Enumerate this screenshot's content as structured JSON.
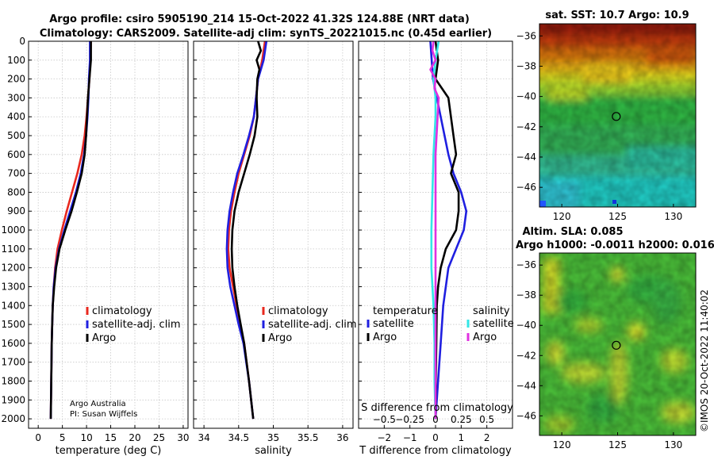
{
  "header": {
    "title_line1": "Argo profile: csiro 5905190_214 15-Oct-2022 41.32S 124.88E (NRT data)",
    "title_line2": "Climatology: CARS2009. Satellite-adj clim: synTS_20221015.nc (0.45d earlier)"
  },
  "credit": {
    "org": "Argo Australia",
    "pi": "PI: Susan Wijffels"
  },
  "timestamp": "©IMOS 20-Oct-2022 11:40:02",
  "colors": {
    "climatology": "#e8281e",
    "satellite_clim": "#1f1fe0",
    "argo": "#000000",
    "sal_satellite": "#33e6e6",
    "sal_argo": "#e030e0"
  },
  "chart_data": [
    {
      "type": "line",
      "id": "temperature",
      "title": "",
      "xlabel": "temperature (deg C)",
      "ylabel": "",
      "xlim": [
        -2,
        31
      ],
      "ylim": [
        2050,
        0
      ],
      "xticks": [
        0,
        5,
        10,
        15,
        20,
        25,
        30
      ],
      "yticks": [
        0,
        100,
        200,
        300,
        400,
        500,
        600,
        700,
        800,
        900,
        1000,
        1100,
        1200,
        1300,
        1400,
        1500,
        1600,
        1700,
        1800,
        1900,
        2000
      ],
      "grid": true,
      "legend": [
        "climatology",
        "satellite-adj. clim",
        "Argo"
      ],
      "series": [
        {
          "name": "climatology",
          "color": "#e8281e",
          "depth": [
            0,
            100,
            200,
            300,
            400,
            500,
            600,
            700,
            800,
            900,
            1000,
            1100,
            1200,
            1300,
            1400,
            1500,
            1600,
            1800,
            2000
          ],
          "values": [
            10.9,
            10.8,
            10.6,
            10.3,
            10.0,
            9.6,
            9.0,
            8.1,
            7.0,
            5.9,
            4.9,
            4.0,
            3.5,
            3.2,
            3.0,
            2.9,
            2.8,
            2.7,
            2.6
          ]
        },
        {
          "name": "satellite-adj. clim",
          "color": "#1f1fe0",
          "depth": [
            0,
            100,
            200,
            300,
            400,
            500,
            600,
            700,
            800,
            900,
            1000,
            1100,
            1200,
            1300,
            1400,
            1500,
            1600,
            1800,
            2000
          ],
          "values": [
            10.7,
            10.7,
            10.5,
            10.4,
            10.2,
            9.9,
            9.5,
            8.8,
            7.8,
            6.6,
            5.4,
            4.3,
            3.6,
            3.2,
            3.0,
            2.9,
            2.8,
            2.7,
            2.6
          ]
        },
        {
          "name": "Argo",
          "color": "#000000",
          "depth": [
            0,
            100,
            200,
            300,
            400,
            500,
            600,
            700,
            800,
            900,
            1000,
            1100,
            1200,
            1300,
            1400,
            1500,
            1600,
            1800,
            2000
          ],
          "values": [
            10.9,
            10.9,
            10.6,
            10.3,
            10.1,
            9.9,
            9.6,
            9.0,
            8.0,
            6.9,
            5.6,
            4.4,
            3.7,
            3.3,
            3.0,
            2.9,
            2.8,
            2.7,
            2.6
          ]
        }
      ]
    },
    {
      "type": "line",
      "id": "salinity",
      "title": "",
      "xlabel": "salinity",
      "ylabel": "",
      "xlim": [
        33.85,
        36.15
      ],
      "ylim": [
        2050,
        0
      ],
      "xticks": [
        34,
        34.5,
        35,
        35.5,
        36
      ],
      "yticks": [
        0,
        100,
        200,
        300,
        400,
        500,
        600,
        700,
        800,
        900,
        1000,
        1100,
        1200,
        1300,
        1400,
        1500,
        1600,
        1700,
        1800,
        1900,
        2000
      ],
      "grid": true,
      "legend": [
        "climatology",
        "satellite-adj. clim",
        "Argo"
      ],
      "series": [
        {
          "name": "climatology",
          "color": "#e8281e",
          "depth": [
            0,
            100,
            200,
            300,
            400,
            500,
            600,
            700,
            800,
            900,
            1000,
            1100,
            1200,
            1300,
            1400,
            1500,
            1600,
            1800,
            2000
          ],
          "values": [
            34.88,
            34.84,
            34.78,
            34.75,
            34.72,
            34.66,
            34.58,
            34.5,
            34.44,
            34.39,
            34.36,
            34.35,
            34.37,
            34.42,
            34.47,
            34.52,
            34.58,
            34.65,
            34.71
          ]
        },
        {
          "name": "satellite-adj. clim",
          "color": "#1f1fe0",
          "depth": [
            0,
            100,
            200,
            300,
            400,
            500,
            600,
            700,
            800,
            900,
            1000,
            1100,
            1200,
            1300,
            1400,
            1500,
            1600,
            1800,
            2000
          ],
          "values": [
            34.9,
            34.86,
            34.78,
            34.75,
            34.72,
            34.65,
            34.57,
            34.48,
            34.42,
            34.37,
            34.34,
            34.33,
            34.34,
            34.38,
            34.44,
            34.5,
            34.57,
            34.65,
            34.71
          ]
        },
        {
          "name": "Argo",
          "color": "#000000",
          "depth": [
            0,
            50,
            100,
            150,
            200,
            300,
            400,
            500,
            600,
            700,
            800,
            900,
            1000,
            1100,
            1200,
            1300,
            1400,
            1500,
            1600,
            1800,
            2000
          ],
          "values": [
            34.78,
            34.82,
            34.76,
            34.8,
            34.77,
            34.76,
            34.77,
            34.73,
            34.66,
            34.58,
            34.5,
            34.44,
            34.41,
            34.4,
            34.41,
            34.44,
            34.48,
            34.53,
            34.58,
            34.65,
            34.71
          ]
        }
      ]
    },
    {
      "type": "line",
      "id": "difference",
      "title": "",
      "xlabel": "T difference from climatology",
      "xlabel_top": "S difference from climatology",
      "ylabel": "",
      "xlim": [
        -3,
        3
      ],
      "ylim": [
        2050,
        0
      ],
      "xticks": [
        -2,
        -1,
        0,
        1,
        2
      ],
      "xticks_top": [
        -0.5,
        -0.25,
        0,
        0.25,
        0.5
      ],
      "yticks": [
        0,
        100,
        200,
        300,
        400,
        500,
        600,
        700,
        800,
        900,
        1000,
        1100,
        1200,
        1300,
        1400,
        1500,
        1600,
        1700,
        1800,
        1900,
        2000
      ],
      "grid": true,
      "legend": [
        "temperature",
        "salinity",
        "satellite",
        "Argo"
      ],
      "series": [
        {
          "name": "temperature satellite",
          "color": "#1f1fe0",
          "depth": [
            0,
            200,
            400,
            600,
            700,
            800,
            900,
            1000,
            1100,
            1200,
            1400,
            1600,
            1800,
            2000
          ],
          "values": [
            -0.2,
            -0.1,
            0.2,
            0.5,
            0.7,
            1.0,
            1.2,
            1.1,
            0.8,
            0.5,
            0.3,
            0.2,
            0.1,
            0.0
          ]
        },
        {
          "name": "temperature Argo",
          "color": "#000000",
          "depth": [
            0,
            100,
            200,
            300,
            400,
            500,
            600,
            700,
            800,
            900,
            1000,
            1100,
            1200,
            1300,
            1400,
            1600,
            1800,
            2000
          ],
          "values": [
            0.0,
            0.1,
            0.0,
            0.5,
            0.6,
            0.7,
            0.8,
            0.6,
            0.9,
            0.9,
            0.8,
            0.4,
            0.2,
            0.1,
            0.05,
            0.03,
            0.01,
            0.0
          ]
        },
        {
          "name": "salinity satellite",
          "color": "#33e6e6",
          "depth": [
            0,
            100,
            200,
            300,
            400,
            600,
            800,
            1000,
            1200,
            1300,
            1400,
            1600,
            1800,
            2000
          ],
          "values": [
            0.03,
            0.0,
            -0.02,
            0.0,
            0.0,
            -0.02,
            -0.03,
            -0.04,
            -0.04,
            -0.03,
            -0.02,
            -0.01,
            -0.01,
            0.0
          ]
        },
        {
          "name": "salinity Argo",
          "color": "#e030e0",
          "depth": [
            0,
            50,
            100,
            150,
            200,
            250,
            300,
            400,
            600,
            800,
            1000,
            1200,
            1400,
            1600,
            1800,
            2000
          ],
          "values": [
            -0.02,
            -0.03,
            0.0,
            -0.05,
            0.0,
            -0.01,
            0.03,
            0.02,
            0.0,
            0.0,
            0.0,
            0.0,
            0.0,
            0.0,
            0.0,
            0.0
          ]
        }
      ]
    },
    {
      "type": "heatmap",
      "id": "sst_map",
      "title": "sat. SST: 10.7 Argo: 10.9",
      "xticks": [
        120,
        125,
        130
      ],
      "yticks": [
        -36,
        -38,
        -40,
        -42,
        -44,
        -46
      ],
      "xlim": [
        118,
        132
      ],
      "ylim": [
        -47.3,
        -35.2
      ],
      "marker": {
        "lon": 124.88,
        "lat": -41.32
      }
    },
    {
      "type": "heatmap",
      "id": "sla_map",
      "title_line1": "Altim. SLA: 0.085",
      "title_line2": "Argo h1000: -0.0011 h2000: 0.016",
      "xticks": [
        120,
        125,
        130
      ],
      "yticks": [
        -36,
        -38,
        -40,
        -42,
        -44,
        -46
      ],
      "xlim": [
        118,
        132
      ],
      "ylim": [
        -47.3,
        -35.2
      ],
      "marker": {
        "lon": 124.88,
        "lat": -41.32
      }
    }
  ]
}
